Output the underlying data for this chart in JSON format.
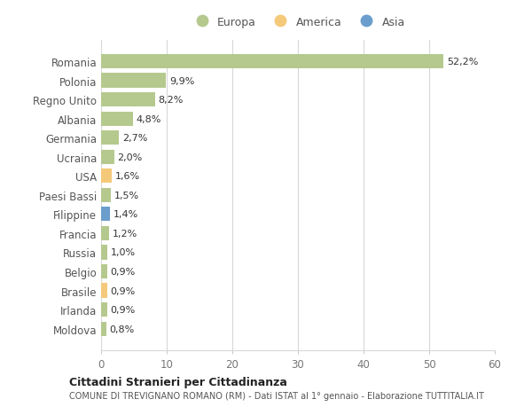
{
  "countries": [
    "Romania",
    "Polonia",
    "Regno Unito",
    "Albania",
    "Germania",
    "Ucraina",
    "USA",
    "Paesi Bassi",
    "Filippine",
    "Francia",
    "Russia",
    "Belgio",
    "Brasile",
    "Irlanda",
    "Moldova"
  ],
  "values": [
    52.2,
    9.9,
    8.2,
    4.8,
    2.7,
    2.0,
    1.6,
    1.5,
    1.4,
    1.2,
    1.0,
    0.9,
    0.9,
    0.9,
    0.8
  ],
  "labels": [
    "52,2%",
    "9,9%",
    "8,2%",
    "4,8%",
    "2,7%",
    "2,0%",
    "1,6%",
    "1,5%",
    "1,4%",
    "1,2%",
    "1,0%",
    "0,9%",
    "0,9%",
    "0,9%",
    "0,8%"
  ],
  "continents": [
    "Europa",
    "Europa",
    "Europa",
    "Europa",
    "Europa",
    "Europa",
    "America",
    "Europa",
    "Asia",
    "Europa",
    "Europa",
    "Europa",
    "America",
    "Europa",
    "Europa"
  ],
  "colors": {
    "Europa": "#b5c98e",
    "America": "#f5c97a",
    "Asia": "#6b9ecc"
  },
  "legend": [
    {
      "label": "Europa",
      "color": "#b5c98e"
    },
    {
      "label": "America",
      "color": "#f5c97a"
    },
    {
      "label": "Asia",
      "color": "#6b9ecc"
    }
  ],
  "xlim": [
    0,
    60
  ],
  "xticks": [
    0,
    10,
    20,
    30,
    40,
    50,
    60
  ],
  "title1": "Cittadini Stranieri per Cittadinanza",
  "title2": "COMUNE DI TREVIGNANO ROMANO (RM) - Dati ISTAT al 1° gennaio - Elaborazione TUTTITALIA.IT",
  "bg_color": "#ffffff",
  "bar_height": 0.75,
  "grid_color": "#d8d8d8"
}
